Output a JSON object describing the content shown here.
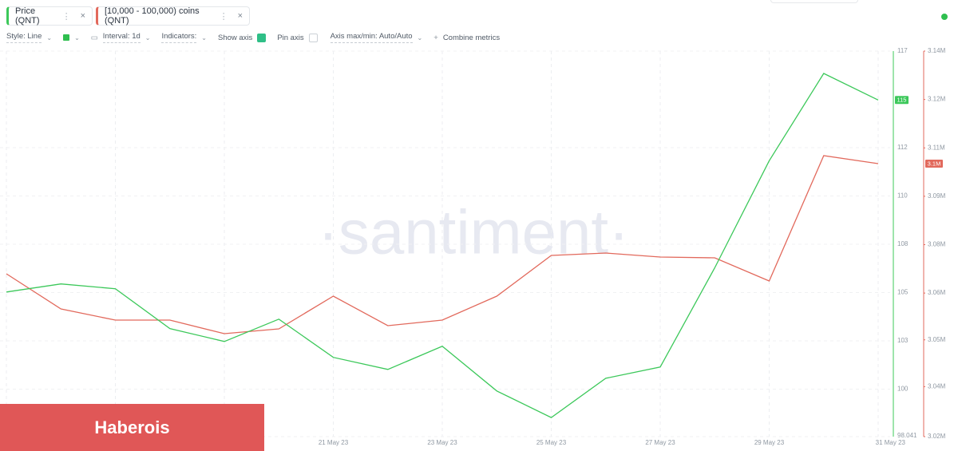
{
  "tabs": [
    "Price (QNT)",
    "[10,000 - 100,000) coins (QNT)"
  ],
  "toolbar": {
    "style": "Style: Line",
    "interval": "Interval: 1d",
    "indicators": "Indicators:",
    "show_axis": "Show axis",
    "pin_axis": "Pin axis",
    "axis_range": "Axis max/min: Auto/Auto",
    "combine": "Combine metrics"
  },
  "watermark": "·santiment·",
  "banner": "Haberois",
  "chart_data": {
    "type": "line",
    "categories": [
      "15 May 23",
      null,
      "17 May 23",
      null,
      "19 May 23",
      null,
      "21 May 23",
      null,
      "23 May 23",
      null,
      "25 May 23",
      null,
      "27 May 23",
      null,
      "29 May 23",
      null,
      "31 May 23"
    ],
    "series": [
      {
        "name": "Price (QNT)",
        "color": "#3cc85a",
        "axis": "y",
        "last_label": "115",
        "values": [
          105.23,
          105.63,
          105.39,
          103.41,
          102.77,
          103.88,
          101.98,
          101.38,
          102.53,
          100.31,
          98.99,
          100.94,
          101.5,
          106.43,
          111.75,
          116.09,
          114.77
        ]
      },
      {
        "name": "[10,000 - 100,000) coins (QNT)",
        "color": "#e2695c",
        "axis": "y2",
        "last_label": "3.1M",
        "values": [
          3070470,
          3059580,
          3056120,
          3056120,
          3051910,
          3053400,
          3063540,
          3054390,
          3056120,
          3063540,
          3076160,
          3076900,
          3075670,
          3075420,
          3068240,
          3107090,
          3104610
        ]
      }
    ],
    "ylim": [
      98.041,
      117.2
    ],
    "yticks": [
      98.041,
      {
        "value": 100.4,
        "label": "100"
      },
      {
        "value": 102.8,
        "label": "103"
      },
      {
        "value": 105.2,
        "label": "105"
      },
      {
        "value": 107.6,
        "label": "108"
      },
      {
        "value": 110,
        "label": "110"
      },
      {
        "value": 112.4,
        "label": "112"
      },
      {
        "value": 117.2,
        "label": "117"
      }
    ],
    "y2lim": [
      3020000,
      3139500
    ],
    "y2ticks": [
      {
        "value": 3020000,
        "label": "3.02M"
      },
      {
        "value": 3035500,
        "label": "3.04M"
      },
      {
        "value": 3050000,
        "label": "3.05M"
      },
      {
        "value": 3064500,
        "label": "3.06M"
      },
      {
        "value": 3079500,
        "label": "3.08M"
      },
      {
        "value": 3094500,
        "label": "3.09M"
      },
      {
        "value": 3109500,
        "label": "3.11M"
      },
      {
        "value": 3124500,
        "label": "3.12M"
      },
      {
        "value": 3139500,
        "label": "3.14M"
      }
    ],
    "grid": true
  }
}
